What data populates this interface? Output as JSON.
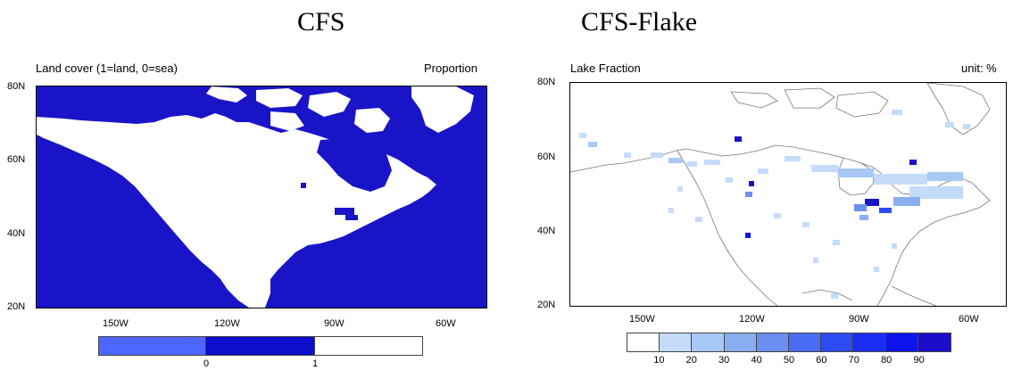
{
  "left_panel": {
    "heading": "CFS",
    "title_left": "Land cover (1=land, 0=sea)",
    "title_right": "Proportion",
    "lat_ticks": [
      "80N",
      "60N",
      "40N",
      "20N"
    ],
    "lon_ticks": [
      "150W",
      "120W",
      "90W",
      "60W"
    ],
    "colorbar_labels": [
      "0",
      "1"
    ],
    "colorbar_colors": [
      "#4d66ff",
      "#0d0dcc",
      "#ffffff"
    ],
    "sea_color": "#1a14c8",
    "land_color": "#ffffff"
  },
  "right_panel": {
    "heading": "CFS-Flake",
    "title_left": "Lake Fraction",
    "title_right": "unit: %",
    "lat_ticks": [
      "80N",
      "60N",
      "40N",
      "20N"
    ],
    "lon_ticks": [
      "150W",
      "120W",
      "90W",
      "60W"
    ],
    "colorbar_labels": [
      "10",
      "20",
      "30",
      "40",
      "50",
      "60",
      "70",
      "80",
      "90"
    ],
    "colorbar_colors": [
      "#ffffff",
      "#c4dcfa",
      "#a8c8f5",
      "#8aaef0",
      "#6a8ff0",
      "#4a6cf5",
      "#2e4af5",
      "#1a2ef5",
      "#0d14f0",
      "#1a0dcc"
    ]
  }
}
